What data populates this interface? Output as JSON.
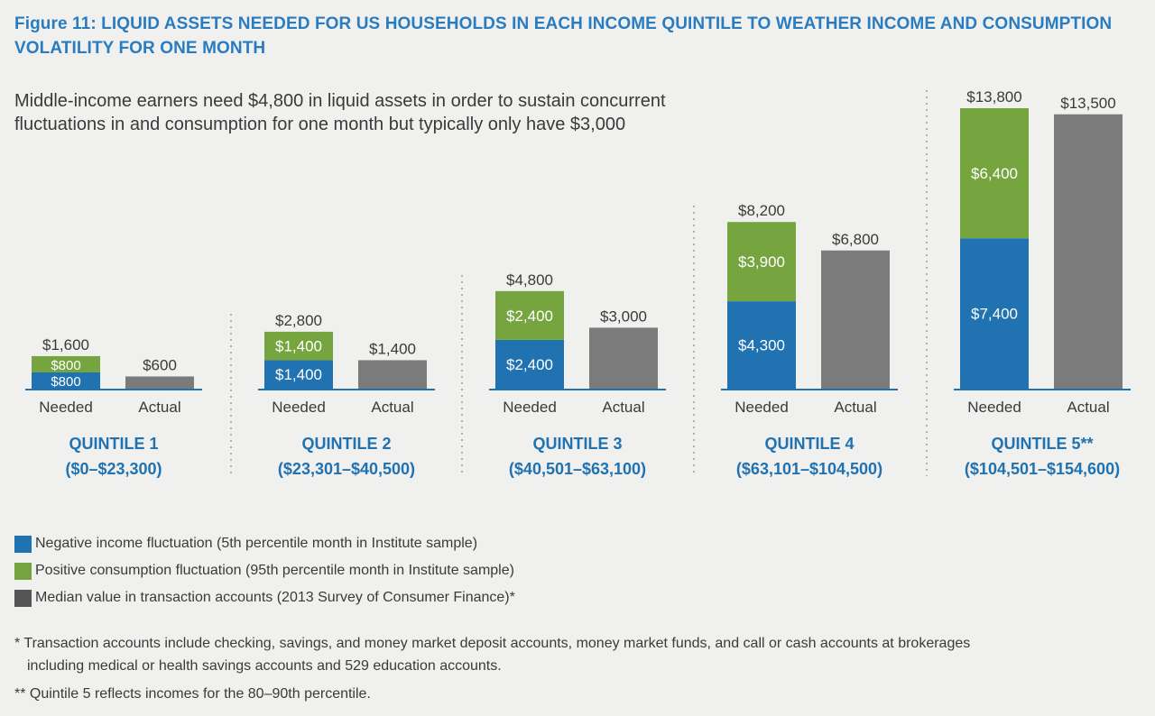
{
  "figure": {
    "title_line1": "Figure 11: LIQUID ASSETS NEEDED FOR US HOUSEHOLDS IN EACH INCOME QUINTILE TO WEATHER INCOME AND CONSUMPTION",
    "title_line2": "VOLATILITY FOR ONE MONTH",
    "subtitle_line1": "Middle-income earners need $4,800 in liquid assets in order to sustain concurrent",
    "subtitle_line2": "fluctuations in and consumption for one month but typically only have $3,000"
  },
  "chart_data": {
    "type": "bar",
    "stacked_groups": true,
    "categories": [
      "Needed",
      "Actual"
    ],
    "groups": [
      {
        "label": "QUINTILE 1",
        "range": "($0–$23,300)",
        "needed": {
          "income": 800,
          "consumption": 800,
          "total": 1600
        },
        "actual": 600,
        "labels": {
          "income": "$800",
          "consumption": "$800",
          "total": "$1,600",
          "actual": "$600"
        }
      },
      {
        "label": "QUINTILE 2",
        "range": "($23,301–$40,500)",
        "needed": {
          "income": 1400,
          "consumption": 1400,
          "total": 2800
        },
        "actual": 1400,
        "labels": {
          "income": "$1,400",
          "consumption": "$1,400",
          "total": "$2,800",
          "actual": "$1,400"
        }
      },
      {
        "label": "QUINTILE 3",
        "range": "($40,501–$63,100)",
        "needed": {
          "income": 2400,
          "consumption": 2400,
          "total": 4800
        },
        "actual": 3000,
        "labels": {
          "income": "$2,400",
          "consumption": "$2,400",
          "total": "$4,800",
          "actual": "$3,000"
        }
      },
      {
        "label": "QUINTILE 4",
        "range": "($63,101–$104,500)",
        "needed": {
          "income": 4300,
          "consumption": 3900,
          "total": 8200
        },
        "actual": 6800,
        "labels": {
          "income": "$4,300",
          "consumption": "$3,900",
          "total": "$8,200",
          "actual": "$6,800"
        }
      },
      {
        "label": "QUINTILE 5**",
        "range": "($104,501–$154,600)",
        "needed": {
          "income": 7400,
          "consumption": 6400,
          "total": 13800
        },
        "actual": 13500,
        "labels": {
          "income": "$7,400",
          "consumption": "$6,400",
          "total": "$13,800",
          "actual": "$13,500"
        }
      }
    ],
    "series": [
      {
        "key": "income",
        "name": "Negative income fluctuation (5th percentile month in Institute sample)",
        "color": "#2072b0"
      },
      {
        "key": "consumption",
        "name": "Positive consumption fluctuation (95th percentile month in Institute sample)",
        "color": "#76a53f"
      },
      {
        "key": "actual",
        "name": "Median value in transaction accounts (2013 Survey of Consumer Finance)*",
        "color": "#7b7b7b"
      }
    ],
    "ylim": [
      0,
      13800
    ],
    "grid": false,
    "legend_position": "bottom-left"
  },
  "colors": {
    "title": "#2a7cc0",
    "axis": "#2072b0",
    "label_text": "#3a3a3a",
    "divider": "#b0b0b0"
  },
  "footnotes": {
    "fn1_line1": "* Transaction accounts include checking, savings, and money market deposit accounts, money market funds, and call or cash accounts at brokerages",
    "fn1_line2": "including medical or health savings accounts and 529 education accounts.",
    "fn2": "** Quintile 5 reflects incomes for the 80–90th percentile."
  }
}
